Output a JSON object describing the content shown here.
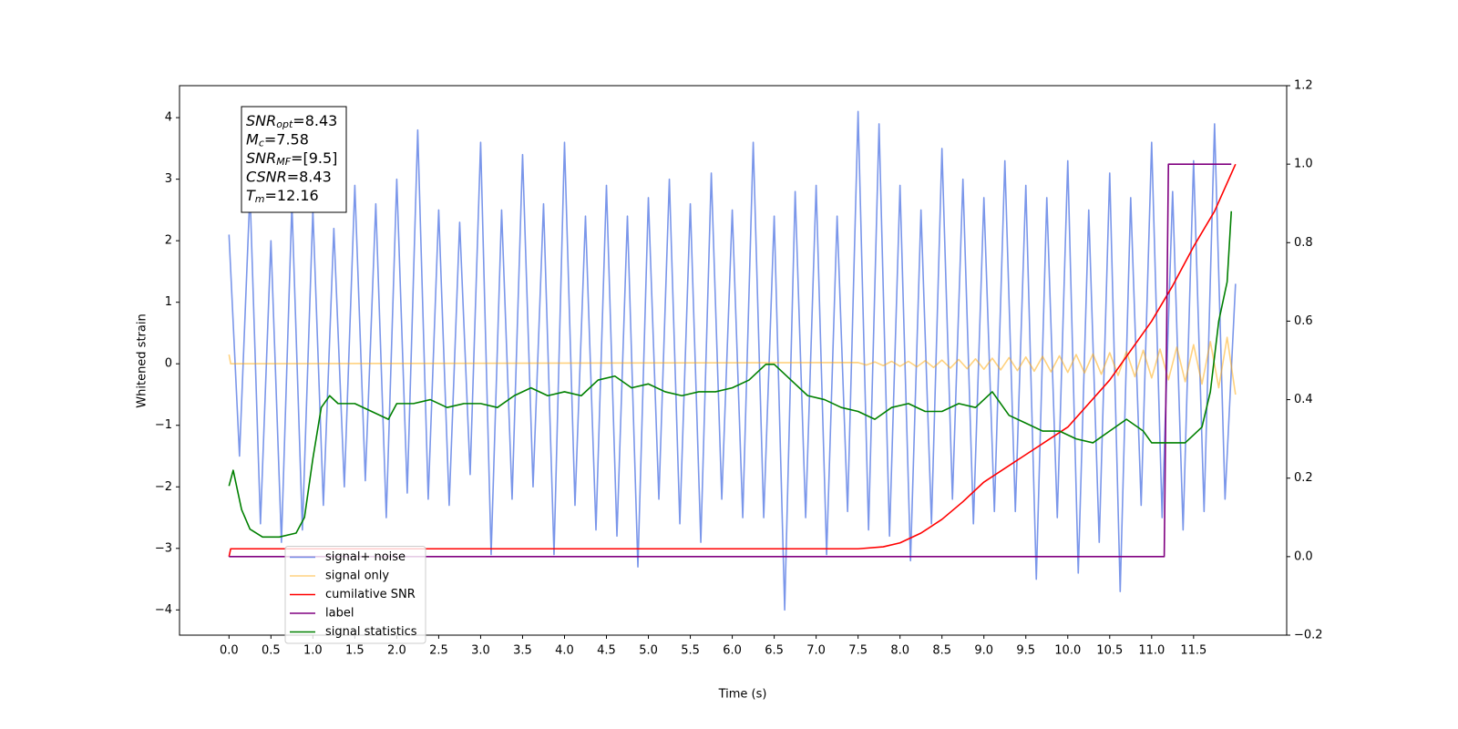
{
  "chart_data": {
    "type": "line",
    "x_label": "Time (s)",
    "y_label": "Whitened strain",
    "xlim": [
      -0.59,
      12.61
    ],
    "xticks": [
      {
        "value": 0,
        "label": "0.0"
      },
      0.5,
      {
        "value": 1,
        "label": "1.0"
      },
      1.5,
      {
        "value": 2,
        "label": "2.0"
      },
      2.5,
      {
        "value": 3,
        "label": "3.0"
      },
      3.5,
      {
        "value": 4,
        "label": "4.0"
      },
      4.5,
      {
        "value": 5,
        "label": "5.0"
      },
      5.5,
      {
        "value": 6,
        "label": "6.0"
      },
      6.5,
      {
        "value": 7,
        "label": "7.0"
      },
      7.5,
      {
        "value": 8,
        "label": "8.0"
      },
      8.5,
      {
        "value": 9,
        "label": "9.0"
      },
      9.5,
      {
        "value": 10,
        "label": "10.0"
      },
      10.5,
      {
        "value": 11,
        "label": "11.0"
      },
      11.5
    ],
    "ylim": [
      -4.41,
      4.52
    ],
    "yticks": [
      {
        "value": -4,
        "label": "−4"
      },
      {
        "value": -3,
        "label": "−3"
      },
      {
        "value": -2,
        "label": "−2"
      },
      {
        "value": -1,
        "label": "−1"
      },
      0,
      1,
      2,
      3,
      4
    ],
    "y2lim": [
      -0.2,
      1.2
    ],
    "y2ticks": [
      {
        "value": -0.2,
        "label": "−0.2"
      },
      {
        "value": 0,
        "label": "0.0"
      },
      0.2,
      0.4,
      0.6,
      0.8,
      {
        "value": 1,
        "label": "1.0"
      },
      1.2
    ],
    "legend": "lower left",
    "annotation": [
      {
        "symbol": "SNR",
        "sub": "opt",
        "text": "=8.43"
      },
      {
        "symbol": "M",
        "sub": "c",
        "text": "=7.58"
      },
      {
        "symbol": "SNR",
        "sub": "MF",
        "text": "=[9.5]"
      },
      {
        "symbol": "CSNR",
        "text": "=8.43"
      },
      {
        "symbol": "T",
        "sub": "m",
        "text": "=12.16"
      }
    ],
    "series": [
      {
        "name": "signal+ noise",
        "color": "#4169e1",
        "opacity": 0.7,
        "x": [
          0,
          0.125,
          0.25,
          0.375,
          0.5,
          0.625,
          0.75,
          0.875,
          1,
          1.125,
          1.25,
          1.375,
          1.5,
          1.625,
          1.75,
          1.875,
          2,
          2.125,
          2.25,
          2.375,
          2.5,
          2.625,
          2.75,
          2.875,
          3,
          3.125,
          3.25,
          3.375,
          3.5,
          3.625,
          3.75,
          3.875,
          4,
          4.125,
          4.25,
          4.375,
          4.5,
          4.625,
          4.75,
          4.875,
          5,
          5.125,
          5.25,
          5.375,
          5.5,
          5.625,
          5.75,
          5.875,
          6,
          6.125,
          6.25,
          6.375,
          6.5,
          6.625,
          6.75,
          6.875,
          7,
          7.125,
          7.25,
          7.375,
          7.5,
          7.625,
          7.75,
          7.875,
          8,
          8.125,
          8.25,
          8.375,
          8.5,
          8.625,
          8.75,
          8.875,
          9,
          9.125,
          9.25,
          9.375,
          9.5,
          9.625,
          9.75,
          9.875,
          10,
          10.125,
          10.25,
          10.375,
          10.5,
          10.625,
          10.75,
          10.875,
          11,
          11.125,
          11.25,
          11.375,
          11.5,
          11.625,
          11.75,
          11.875,
          12
        ],
        "values": [
          2.1,
          -1.5,
          2.8,
          -2.6,
          2.0,
          -2.9,
          2.6,
          -2.7,
          2.5,
          -2.3,
          2.2,
          -2.0,
          2.9,
          -1.9,
          2.6,
          -2.5,
          3.0,
          -2.1,
          3.8,
          -2.2,
          2.5,
          -2.3,
          2.3,
          -1.8,
          3.6,
          -3.1,
          2.5,
          -2.2,
          3.4,
          -2.0,
          2.6,
          -3.1,
          3.6,
          -2.3,
          2.4,
          -2.7,
          2.9,
          -2.8,
          2.4,
          -3.3,
          2.7,
          -2.2,
          3.0,
          -2.6,
          2.6,
          -2.9,
          3.1,
          -2.2,
          2.5,
          -2.5,
          3.6,
          -2.5,
          2.4,
          -4.0,
          2.8,
          -2.5,
          2.9,
          -3.1,
          2.4,
          -2.4,
          4.1,
          -2.7,
          3.9,
          -2.8,
          2.9,
          -3.2,
          2.5,
          -2.6,
          3.5,
          -2.2,
          3.0,
          -2.6,
          2.7,
          -2.4,
          3.3,
          -2.4,
          2.9,
          -3.5,
          2.7,
          -2.5,
          3.3,
          -3.4,
          2.5,
          -2.9,
          3.1,
          -3.7,
          2.7,
          -2.3,
          3.6,
          -2.5,
          2.8,
          -2.7,
          3.3,
          -2.4,
          3.9,
          -2.2,
          1.3
        ]
      },
      {
        "name": "signal only",
        "color": "#ffa500",
        "opacity": 0.5,
        "x": [
          0,
          0.02,
          7.5,
          7.6,
          7.7,
          7.8,
          7.9,
          8.0,
          8.1,
          8.2,
          8.3,
          8.4,
          8.5,
          8.6,
          8.7,
          8.8,
          8.9,
          9.0,
          9.1,
          9.2,
          9.3,
          9.4,
          9.5,
          9.6,
          9.7,
          9.8,
          9.9,
          10.0,
          10.1,
          10.2,
          10.3,
          10.4,
          10.5,
          10.6,
          10.7,
          10.8,
          10.9,
          11.0,
          11.1,
          11.2,
          11.3,
          11.4,
          11.5,
          11.6,
          11.7,
          11.8,
          11.9,
          12.0
        ],
        "values": [
          0.15,
          0,
          0.02,
          -0.02,
          0.03,
          -0.03,
          0.04,
          -0.04,
          0.04,
          -0.05,
          0.05,
          -0.06,
          0.06,
          -0.07,
          0.07,
          -0.08,
          0.08,
          -0.09,
          0.09,
          -0.1,
          0.1,
          -0.11,
          0.11,
          -0.12,
          0.12,
          -0.13,
          0.13,
          -0.14,
          0.15,
          -0.15,
          0.16,
          -0.17,
          0.18,
          -0.19,
          0.2,
          -0.21,
          0.22,
          -0.23,
          0.24,
          -0.26,
          0.27,
          -0.29,
          0.31,
          -0.33,
          0.36,
          -0.39,
          0.43,
          -0.5
        ]
      },
      {
        "name": "cumilative SNR",
        "color": "#ff0000",
        "axis": "y2",
        "x": [
          0,
          0.02,
          7.5,
          7.8,
          8.0,
          8.25,
          8.5,
          8.75,
          9.0,
          9.5,
          10.0,
          10.5,
          11.0,
          11.25,
          11.5,
          11.75,
          12.0
        ],
        "values": [
          0.0,
          0.02,
          0.02,
          0.025,
          0.035,
          0.06,
          0.095,
          0.14,
          0.19,
          0.26,
          0.33,
          0.45,
          0.6,
          0.69,
          0.79,
          0.88,
          1.0
        ]
      },
      {
        "name": "label",
        "color": "#800080",
        "axis": "y2",
        "x": [
          0,
          11.15,
          11.2,
          11.95
        ],
        "values": [
          0,
          0,
          1,
          1
        ]
      },
      {
        "name": "signal statistics",
        "color": "#008000",
        "axis": "y2",
        "x": [
          0,
          0.05,
          0.15,
          0.25,
          0.4,
          0.6,
          0.8,
          0.9,
          1.0,
          1.1,
          1.2,
          1.3,
          1.5,
          1.7,
          1.9,
          2.0,
          2.2,
          2.4,
          2.6,
          2.8,
          3.0,
          3.2,
          3.4,
          3.6,
          3.8,
          4.0,
          4.2,
          4.4,
          4.6,
          4.8,
          5.0,
          5.2,
          5.4,
          5.6,
          5.8,
          6.0,
          6.2,
          6.4,
          6.5,
          6.7,
          6.9,
          7.1,
          7.3,
          7.5,
          7.7,
          7.9,
          8.1,
          8.3,
          8.5,
          8.7,
          8.9,
          9.1,
          9.3,
          9.5,
          9.7,
          9.9,
          10.1,
          10.3,
          10.5,
          10.7,
          10.9,
          11.0,
          11.2,
          11.4,
          11.6,
          11.7,
          11.8,
          11.9,
          11.95
        ],
        "values": [
          0.18,
          0.22,
          0.12,
          0.07,
          0.05,
          0.05,
          0.06,
          0.1,
          0.25,
          0.38,
          0.41,
          0.39,
          0.39,
          0.37,
          0.35,
          0.39,
          0.39,
          0.4,
          0.38,
          0.39,
          0.39,
          0.38,
          0.41,
          0.43,
          0.41,
          0.42,
          0.41,
          0.45,
          0.46,
          0.43,
          0.44,
          0.42,
          0.41,
          0.42,
          0.42,
          0.43,
          0.45,
          0.49,
          0.49,
          0.45,
          0.41,
          0.4,
          0.38,
          0.37,
          0.35,
          0.38,
          0.39,
          0.37,
          0.37,
          0.39,
          0.38,
          0.42,
          0.36,
          0.34,
          0.32,
          0.32,
          0.3,
          0.29,
          0.32,
          0.35,
          0.32,
          0.29,
          0.29,
          0.29,
          0.33,
          0.42,
          0.6,
          0.7,
          0.88
        ]
      }
    ]
  }
}
